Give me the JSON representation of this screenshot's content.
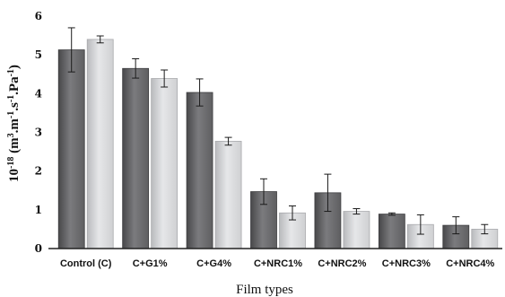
{
  "chart_data": {
    "type": "bar",
    "categories": [
      "Control (C)",
      "C+G1%",
      "C+G4%",
      "C+NRC1%",
      "C+NRC2%",
      "C+NRC3%",
      "C+NRC4%"
    ],
    "series": [
      {
        "values": [
          5.13,
          4.65,
          4.03,
          1.47,
          1.44,
          0.89,
          0.6
        ],
        "errors": [
          0.57,
          0.25,
          0.35,
          0.33,
          0.48,
          0.03,
          0.22
        ],
        "color": "#5f5f61"
      },
      {
        "values": [
          5.4,
          4.39,
          2.77,
          0.92,
          0.96,
          0.62,
          0.5
        ],
        "errors": [
          0.09,
          0.22,
          0.1,
          0.18,
          0.07,
          0.25,
          0.12
        ],
        "color": "#cfd0d2"
      }
    ],
    "xlabel": "Film types",
    "ylabel": "10-18 (m3.m-1.s-1.Pa-1)",
    "ylim": [
      0,
      6
    ],
    "yticks": [
      "0",
      "1",
      "2",
      "3",
      "4",
      "5",
      "6"
    ],
    "grid": false,
    "legend": "none"
  }
}
